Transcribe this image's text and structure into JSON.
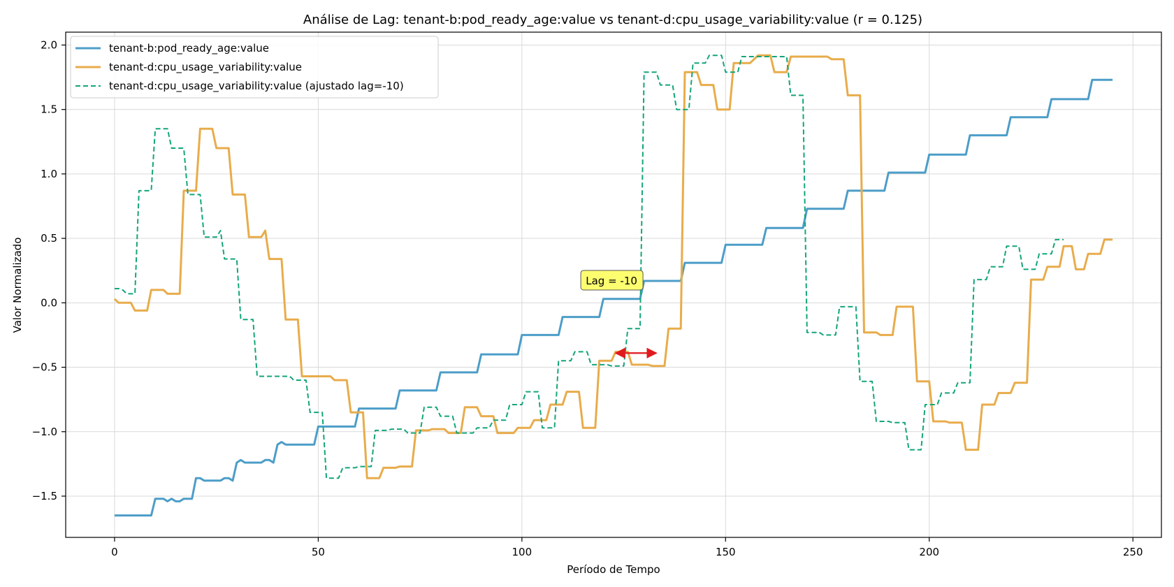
{
  "chart_data": {
    "type": "line",
    "title": "Análise de Lag: tenant-b:pod_ready_age:value vs tenant-d:cpu_usage_variability:value (r = 0.125)",
    "xlabel": "Período de Tempo",
    "ylabel": "Valor Normalizado",
    "xlim": [
      -12,
      257
    ],
    "ylim": [
      -1.82,
      2.1
    ],
    "xticks": [
      0,
      50,
      100,
      150,
      200,
      250
    ],
    "xtick_labels": [
      "0",
      "50",
      "100",
      "150",
      "200",
      "250"
    ],
    "yticks": [
      -1.5,
      -1.0,
      -0.5,
      0.0,
      0.5,
      1.0,
      1.5,
      2.0
    ],
    "ytick_labels": [
      "−1.5",
      "−1.0",
      "−0.5",
      "0.0",
      "0.5",
      "1.0",
      "1.5",
      "2.0"
    ],
    "grid": true,
    "legend_position": "top-left",
    "series": [
      {
        "name": "tenant-b:pod_ready_age:value",
        "color": "#4c9dc8",
        "style": "solid",
        "points": [
          [
            0,
            -1.65
          ],
          [
            9,
            -1.65
          ],
          [
            10,
            -1.52
          ],
          [
            12,
            -1.52
          ],
          [
            13,
            -1.54
          ],
          [
            14,
            -1.52
          ],
          [
            15,
            -1.54
          ],
          [
            16,
            -1.54
          ],
          [
            17,
            -1.52
          ],
          [
            19,
            -1.52
          ],
          [
            20,
            -1.36
          ],
          [
            21,
            -1.36
          ],
          [
            22,
            -1.38
          ],
          [
            26,
            -1.38
          ],
          [
            27,
            -1.36
          ],
          [
            28,
            -1.36
          ],
          [
            29,
            -1.38
          ],
          [
            30,
            -1.24
          ],
          [
            31,
            -1.22
          ],
          [
            32,
            -1.24
          ],
          [
            36,
            -1.24
          ],
          [
            37,
            -1.22
          ],
          [
            38,
            -1.22
          ],
          [
            39,
            -1.24
          ],
          [
            40,
            -1.1
          ],
          [
            41,
            -1.08
          ],
          [
            42,
            -1.1
          ],
          [
            49,
            -1.1
          ],
          [
            50,
            -0.96
          ],
          [
            59,
            -0.96
          ],
          [
            60,
            -0.82
          ],
          [
            69,
            -0.82
          ],
          [
            70,
            -0.68
          ],
          [
            79,
            -0.68
          ],
          [
            80,
            -0.54
          ],
          [
            89,
            -0.54
          ],
          [
            90,
            -0.4
          ],
          [
            99,
            -0.4
          ],
          [
            100,
            -0.25
          ],
          [
            109,
            -0.25
          ],
          [
            110,
            -0.11
          ],
          [
            119,
            -0.11
          ],
          [
            120,
            0.03
          ],
          [
            129,
            0.03
          ],
          [
            130,
            0.17
          ],
          [
            139,
            0.17
          ],
          [
            140,
            0.31
          ],
          [
            149,
            0.31
          ],
          [
            150,
            0.45
          ],
          [
            159,
            0.45
          ],
          [
            160,
            0.58
          ],
          [
            169,
            0.58
          ],
          [
            170,
            0.73
          ],
          [
            179,
            0.73
          ],
          [
            180,
            0.87
          ],
          [
            189,
            0.87
          ],
          [
            190,
            1.01
          ],
          [
            199,
            1.01
          ],
          [
            200,
            1.15
          ],
          [
            209,
            1.15
          ],
          [
            210,
            1.3
          ],
          [
            219,
            1.3
          ],
          [
            220,
            1.44
          ],
          [
            229,
            1.44
          ],
          [
            230,
            1.58
          ],
          [
            239,
            1.58
          ],
          [
            240,
            1.73
          ],
          [
            245,
            1.73
          ]
        ]
      },
      {
        "name": "tenant-d:cpu_usage_variability:value",
        "color": "#e8ac4b",
        "style": "solid",
        "points": [
          [
            0,
            0.03
          ],
          [
            1,
            0.0
          ],
          [
            4,
            0.0
          ],
          [
            5,
            -0.06
          ],
          [
            8,
            -0.06
          ],
          [
            9,
            0.1
          ],
          [
            12,
            0.1
          ],
          [
            13,
            0.07
          ],
          [
            16,
            0.07
          ],
          [
            17,
            0.87
          ],
          [
            20,
            0.87
          ],
          [
            21,
            1.35
          ],
          [
            24,
            1.35
          ],
          [
            25,
            1.2
          ],
          [
            28,
            1.2
          ],
          [
            29,
            0.84
          ],
          [
            32,
            0.84
          ],
          [
            33,
            0.51
          ],
          [
            36,
            0.51
          ],
          [
            37,
            0.56
          ],
          [
            38,
            0.34
          ],
          [
            41,
            0.34
          ],
          [
            42,
            -0.13
          ],
          [
            45,
            -0.13
          ],
          [
            46,
            -0.57
          ],
          [
            50,
            -0.57
          ],
          [
            53,
            -0.57
          ],
          [
            54,
            -0.6
          ],
          [
            57,
            -0.6
          ],
          [
            58,
            -0.85
          ],
          [
            61,
            -0.85
          ],
          [
            62,
            -1.36
          ],
          [
            65,
            -1.36
          ],
          [
            66,
            -1.28
          ],
          [
            69,
            -1.28
          ],
          [
            70,
            -1.27
          ],
          [
            73,
            -1.27
          ],
          [
            74,
            -0.99
          ],
          [
            77,
            -0.99
          ],
          [
            78,
            -0.98
          ],
          [
            81,
            -0.98
          ],
          [
            82,
            -1.01
          ],
          [
            85,
            -1.01
          ],
          [
            86,
            -0.81
          ],
          [
            89,
            -0.81
          ],
          [
            90,
            -0.88
          ],
          [
            93,
            -0.88
          ],
          [
            94,
            -1.01
          ],
          [
            98,
            -1.01
          ],
          [
            99,
            -0.97
          ],
          [
            102,
            -0.97
          ],
          [
            103,
            -0.91
          ],
          [
            106,
            -0.91
          ],
          [
            107,
            -0.79
          ],
          [
            110,
            -0.79
          ],
          [
            111,
            -0.69
          ],
          [
            114,
            -0.69
          ],
          [
            115,
            -0.97
          ],
          [
            118,
            -0.97
          ],
          [
            119,
            -0.45
          ],
          [
            122,
            -0.45
          ],
          [
            123,
            -0.38
          ],
          [
            126,
            -0.38
          ],
          [
            127,
            -0.48
          ],
          [
            131,
            -0.48
          ],
          [
            132,
            -0.49
          ],
          [
            135,
            -0.49
          ],
          [
            136,
            -0.2
          ],
          [
            139,
            -0.2
          ],
          [
            140,
            1.79
          ],
          [
            143,
            1.79
          ],
          [
            144,
            1.69
          ],
          [
            147,
            1.69
          ],
          [
            148,
            1.5
          ],
          [
            151,
            1.5
          ],
          [
            152,
            1.86
          ],
          [
            155,
            1.86
          ],
          [
            156,
            1.86
          ],
          [
            158,
            1.92
          ],
          [
            161,
            1.92
          ],
          [
            162,
            1.79
          ],
          [
            165,
            1.79
          ],
          [
            166,
            1.91
          ],
          [
            175,
            1.91
          ],
          [
            176,
            1.89
          ],
          [
            179,
            1.89
          ],
          [
            180,
            1.61
          ],
          [
            183,
            1.61
          ],
          [
            184,
            -0.23
          ],
          [
            187,
            -0.23
          ],
          [
            188,
            -0.25
          ],
          [
            191,
            -0.25
          ],
          [
            192,
            -0.03
          ],
          [
            196,
            -0.03
          ],
          [
            197,
            -0.61
          ],
          [
            200,
            -0.61
          ],
          [
            201,
            -0.92
          ],
          [
            204,
            -0.92
          ],
          [
            205,
            -0.93
          ],
          [
            208,
            -0.93
          ],
          [
            209,
            -1.14
          ],
          [
            212,
            -1.14
          ],
          [
            213,
            -0.79
          ],
          [
            216,
            -0.79
          ],
          [
            217,
            -0.7
          ],
          [
            220,
            -0.7
          ],
          [
            221,
            -0.62
          ],
          [
            224,
            -0.62
          ],
          [
            225,
            0.18
          ],
          [
            228,
            0.18
          ],
          [
            229,
            0.28
          ],
          [
            232,
            0.28
          ],
          [
            233,
            0.44
          ],
          [
            235,
            0.44
          ],
          [
            236,
            0.26
          ],
          [
            238,
            0.26
          ],
          [
            239,
            0.38
          ],
          [
            242,
            0.38
          ],
          [
            243,
            0.49
          ],
          [
            245,
            0.49
          ]
        ]
      },
      {
        "name": "tenant-d:cpu_usage_variability:value (ajustado lag=-10)",
        "color": "#13a57a",
        "style": "dashed",
        "points": [
          [
            0,
            0.11
          ],
          [
            1,
            0.11
          ],
          [
            2,
            0.1
          ],
          [
            3,
            0.07
          ],
          [
            5,
            0.07
          ],
          [
            6,
            0.87
          ],
          [
            9,
            0.87
          ],
          [
            10,
            1.35
          ],
          [
            13,
            1.35
          ],
          [
            14,
            1.2
          ],
          [
            17,
            1.2
          ],
          [
            18,
            0.84
          ],
          [
            21,
            0.84
          ],
          [
            22,
            0.51
          ],
          [
            25,
            0.51
          ],
          [
            26,
            0.56
          ],
          [
            27,
            0.34
          ],
          [
            30,
            0.34
          ],
          [
            31,
            -0.13
          ],
          [
            34,
            -0.13
          ],
          [
            35,
            -0.57
          ],
          [
            39,
            -0.57
          ],
          [
            43,
            -0.57
          ],
          [
            44,
            -0.6
          ],
          [
            47,
            -0.6
          ],
          [
            48,
            -0.85
          ],
          [
            51,
            -0.85
          ],
          [
            52,
            -1.36
          ],
          [
            55,
            -1.36
          ],
          [
            56,
            -1.28
          ],
          [
            59,
            -1.28
          ],
          [
            60,
            -1.27
          ],
          [
            63,
            -1.27
          ],
          [
            64,
            -0.99
          ],
          [
            67,
            -0.99
          ],
          [
            68,
            -0.98
          ],
          [
            71,
            -0.98
          ],
          [
            72,
            -1.01
          ],
          [
            75,
            -1.01
          ],
          [
            76,
            -0.81
          ],
          [
            79,
            -0.81
          ],
          [
            80,
            -0.88
          ],
          [
            83,
            -0.88
          ],
          [
            84,
            -1.01
          ],
          [
            88,
            -1.01
          ],
          [
            89,
            -0.97
          ],
          [
            92,
            -0.97
          ],
          [
            93,
            -0.91
          ],
          [
            96,
            -0.91
          ],
          [
            97,
            -0.79
          ],
          [
            100,
            -0.79
          ],
          [
            101,
            -0.69
          ],
          [
            104,
            -0.69
          ],
          [
            105,
            -0.97
          ],
          [
            108,
            -0.97
          ],
          [
            109,
            -0.45
          ],
          [
            112,
            -0.45
          ],
          [
            113,
            -0.38
          ],
          [
            116,
            -0.38
          ],
          [
            117,
            -0.48
          ],
          [
            121,
            -0.48
          ],
          [
            122,
            -0.49
          ],
          [
            125,
            -0.49
          ],
          [
            126,
            -0.2
          ],
          [
            129,
            -0.2
          ],
          [
            130,
            1.79
          ],
          [
            133,
            1.79
          ],
          [
            134,
            1.69
          ],
          [
            137,
            1.69
          ],
          [
            138,
            1.5
          ],
          [
            141,
            1.5
          ],
          [
            142,
            1.86
          ],
          [
            145,
            1.86
          ],
          [
            146,
            1.92
          ],
          [
            149,
            1.92
          ],
          [
            150,
            1.79
          ],
          [
            153,
            1.79
          ],
          [
            154,
            1.91
          ],
          [
            165,
            1.91
          ],
          [
            166,
            1.61
          ],
          [
            169,
            1.61
          ],
          [
            170,
            -0.23
          ],
          [
            173,
            -0.23
          ],
          [
            174,
            -0.25
          ],
          [
            177,
            -0.25
          ],
          [
            178,
            -0.03
          ],
          [
            182,
            -0.03
          ],
          [
            183,
            -0.61
          ],
          [
            186,
            -0.61
          ],
          [
            187,
            -0.92
          ],
          [
            190,
            -0.92
          ],
          [
            191,
            -0.93
          ],
          [
            194,
            -0.93
          ],
          [
            195,
            -1.14
          ],
          [
            198,
            -1.14
          ],
          [
            199,
            -0.79
          ],
          [
            202,
            -0.79
          ],
          [
            203,
            -0.7
          ],
          [
            206,
            -0.7
          ],
          [
            207,
            -0.62
          ],
          [
            210,
            -0.62
          ],
          [
            211,
            0.18
          ],
          [
            214,
            0.18
          ],
          [
            215,
            0.28
          ],
          [
            218,
            0.28
          ],
          [
            219,
            0.44
          ],
          [
            222,
            0.44
          ],
          [
            223,
            0.26
          ],
          [
            226,
            0.26
          ],
          [
            227,
            0.38
          ],
          [
            230,
            0.38
          ],
          [
            231,
            0.49
          ],
          [
            233,
            0.49
          ]
        ]
      }
    ],
    "annotation": {
      "text": "Lag = -10",
      "at": [
        122,
        0.17
      ],
      "box_color": "#fdfd70",
      "arrow_from": [
        123,
        -0.39
      ],
      "arrow_to": [
        133,
        -0.39
      ],
      "arrow_color": "#e0191e"
    }
  }
}
